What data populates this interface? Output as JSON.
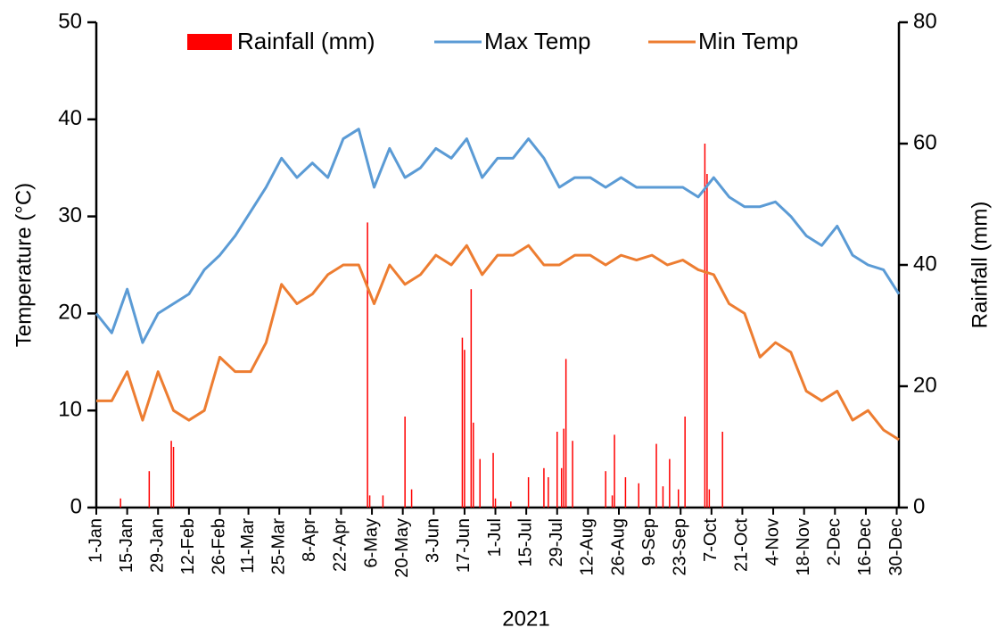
{
  "chart_data": {
    "type": "combo",
    "x_label": "2021",
    "y_label": "Temperature (°C)",
    "y2_label": "Rainfall (mm)",
    "xlim": [
      "1-Jan",
      "31-Dec"
    ],
    "xticks": [
      "1-Jan",
      "15-Jan",
      "29-Jan",
      "12-Feb",
      "26-Feb",
      "11-Mar",
      "25-Mar",
      "8-Apr",
      "22-Apr",
      "6-May",
      "20-May",
      "3-Jun",
      "17-Jun",
      "1-Jul",
      "15-Jul",
      "29-Jul",
      "12-Aug",
      "26-Aug",
      "9-Sep",
      "23-Sep",
      "7-Oct",
      "21-Oct",
      "4-Nov",
      "18-Nov",
      "2-Dec",
      "16-Dec",
      "30-Dec"
    ],
    "ylim": [
      0,
      50
    ],
    "yticks": [
      0,
      10,
      20,
      30,
      40,
      50
    ],
    "y2lim": [
      0,
      80
    ],
    "y2ticks": [
      0,
      20,
      40,
      60,
      80
    ],
    "x": [
      "1-Jan",
      "8-Jan",
      "15-Jan",
      "22-Jan",
      "29-Jan",
      "5-Feb",
      "12-Feb",
      "19-Feb",
      "26-Feb",
      "5-Mar",
      "12-Mar",
      "19-Mar",
      "26-Mar",
      "2-Apr",
      "9-Apr",
      "16-Apr",
      "23-Apr",
      "30-Apr",
      "7-May",
      "14-May",
      "21-May",
      "28-May",
      "4-Jun",
      "11-Jun",
      "18-Jun",
      "25-Jun",
      "2-Jul",
      "9-Jul",
      "16-Jul",
      "23-Jul",
      "30-Jul",
      "6-Aug",
      "13-Aug",
      "20-Aug",
      "27-Aug",
      "3-Sep",
      "10-Sep",
      "17-Sep",
      "24-Sep",
      "1-Oct",
      "8-Oct",
      "15-Oct",
      "22-Oct",
      "29-Oct",
      "5-Nov",
      "12-Nov",
      "19-Nov",
      "26-Nov",
      "3-Dec",
      "10-Dec",
      "17-Dec",
      "24-Dec",
      "31-Dec"
    ],
    "series": [
      {
        "name": "Rainfall (mm)",
        "type": "bar",
        "axis": "y2",
        "color": "#ff0000",
        "x": [
          "12-Jan",
          "25-Jan",
          "4-Feb",
          "5-Feb",
          "4-May",
          "5-May",
          "11-May",
          "21-May",
          "24-May",
          "16-Jun",
          "17-Jun",
          "20-Jun",
          "21-Jun",
          "24-Jun",
          "30-Jun",
          "1-Jul",
          "8-Jul",
          "16-Jul",
          "23-Jul",
          "25-Jul",
          "29-Jul",
          "31-Jul",
          "1-Aug",
          "2-Aug",
          "5-Aug",
          "20-Aug",
          "23-Aug",
          "24-Aug",
          "29-Aug",
          "4-Sep",
          "12-Sep",
          "15-Sep",
          "18-Sep",
          "22-Sep",
          "25-Sep",
          "4-Oct",
          "5-Oct",
          "6-Oct",
          "12-Oct"
        ],
        "values": [
          1.5,
          6,
          11,
          10,
          47,
          2,
          2,
          15,
          3,
          28,
          26,
          36,
          14,
          8,
          9,
          1.5,
          1,
          5,
          6.5,
          5,
          12.5,
          6.5,
          13,
          24.5,
          11,
          6,
          2,
          12,
          5,
          4,
          10.5,
          3.5,
          8,
          3,
          15,
          60,
          55,
          3,
          12.5
        ]
      },
      {
        "name": "Max Temp",
        "type": "line",
        "color": "#5b9bd5",
        "values": [
          20,
          18,
          22.5,
          17,
          20,
          21,
          22,
          24.5,
          26,
          28,
          30.5,
          33,
          36,
          34,
          35.5,
          34,
          38,
          39,
          33,
          37,
          34,
          35,
          37,
          36,
          38,
          34,
          36,
          36,
          38,
          36,
          33,
          34,
          34,
          33,
          34,
          33,
          33,
          33,
          33,
          32,
          34,
          32,
          31,
          31,
          31.5,
          30,
          28,
          27,
          29,
          26,
          25,
          24.5,
          22
        ]
      },
      {
        "name": "Min Temp",
        "type": "line",
        "color": "#ed7d31",
        "values": [
          11,
          11,
          14,
          9,
          14,
          10,
          9,
          10,
          15.5,
          14,
          14,
          17,
          23,
          21,
          22,
          24,
          25,
          25,
          21,
          25,
          23,
          24,
          26,
          25,
          27,
          24,
          26,
          26,
          27,
          25,
          25,
          26,
          26,
          25,
          26,
          25.5,
          26,
          25,
          25.5,
          24.5,
          24,
          21,
          20,
          15.5,
          17,
          16,
          12,
          11,
          12,
          9,
          10,
          8,
          7
        ]
      }
    ]
  }
}
